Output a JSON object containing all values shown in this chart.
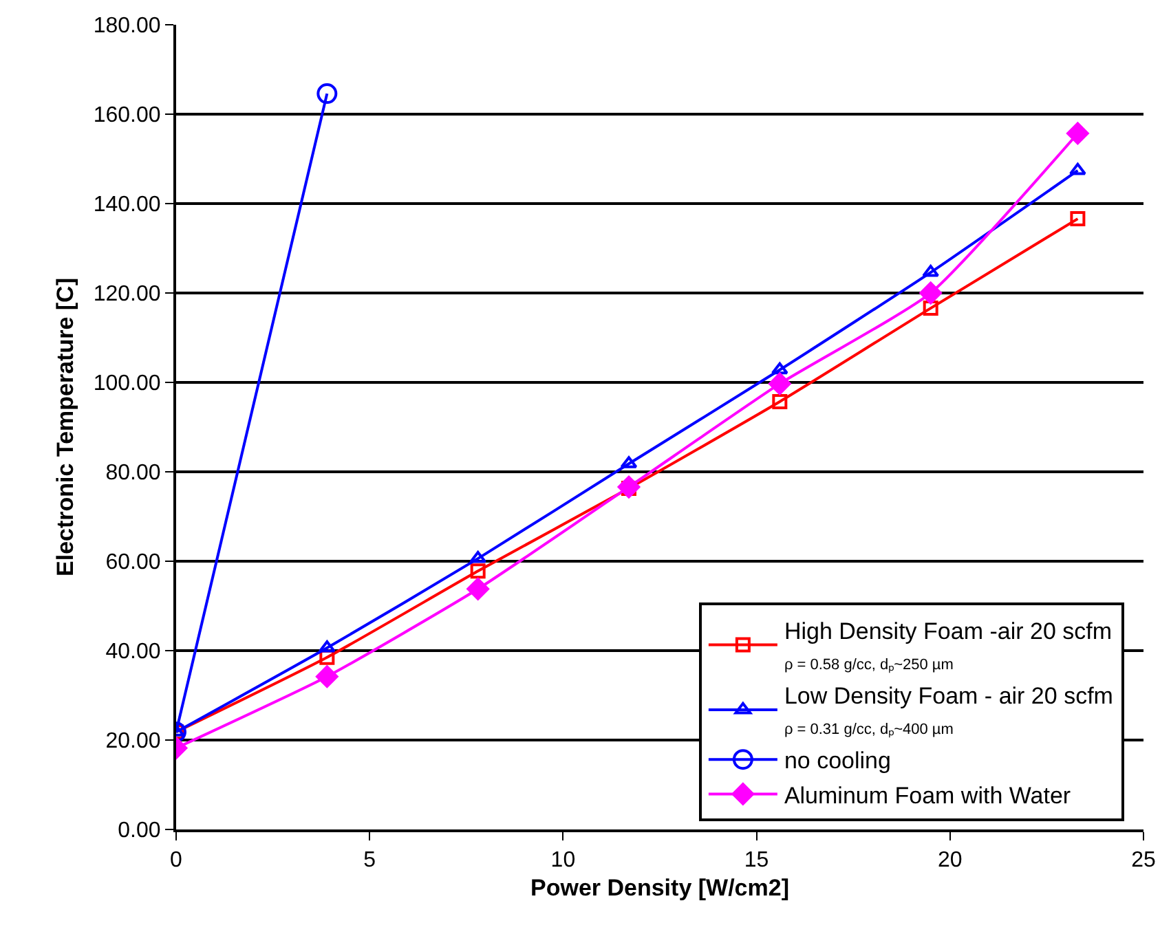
{
  "chart_data": {
    "type": "line",
    "xlabel": "Power Density [W/cm2]",
    "ylabel": "Electronic Temperature [C]",
    "xlim": [
      0,
      25
    ],
    "xticks": [
      0,
      5,
      10,
      15,
      20,
      25
    ],
    "ylim": [
      0,
      180
    ],
    "yticks": [
      {
        "value": 0,
        "label": "0.00"
      },
      {
        "value": 20,
        "label": "20.00"
      },
      {
        "value": 40,
        "label": "40.00"
      },
      {
        "value": 60,
        "label": "60.00"
      },
      {
        "value": 80,
        "label": "80.00"
      },
      {
        "value": 100,
        "label": "100.00"
      },
      {
        "value": 120,
        "label": "120.00"
      },
      {
        "value": 140,
        "label": "140.00"
      },
      {
        "value": 160,
        "label": "160.00"
      },
      {
        "value": 180,
        "label": "180.00"
      }
    ],
    "grid": "y",
    "legend": "bottom right",
    "line_style": "solid",
    "series": [
      {
        "name": "High Density Foam -air 20 scfm\nρ = 0.58 g/cc, dₚ~250 µm",
        "color": "#ff0000",
        "marker": "square",
        "x": [
          0,
          3.9,
          7.8,
          11.7,
          15.6,
          19.5,
          23.3
        ],
        "values": [
          21.8,
          38.5,
          57.8,
          76.3,
          95.7,
          116.6,
          136.6
        ]
      },
      {
        "name": "Low Density Foam - air 20 scfm\nρ = 0.31 g/cc, dₚ~400 µm",
        "color": "#0000ff",
        "marker": "triangle",
        "x": [
          0,
          3.9,
          7.8,
          11.7,
          15.6,
          19.5,
          23.3
        ],
        "values": [
          21.8,
          40.6,
          60.6,
          81.8,
          102.8,
          124.6,
          147.4
        ]
      },
      {
        "name": "no cooling",
        "color": "#0000ff",
        "marker": "circle",
        "x": [
          0,
          3.9
        ],
        "values": [
          21.8,
          164.6
        ]
      },
      {
        "name": "Aluminum Foam with Water",
        "color": "#ff00ff",
        "marker": "diamond",
        "x": [
          0,
          3.9,
          7.8,
          11.7,
          15.6,
          19.5,
          23.3
        ],
        "values": [
          18.2,
          34.2,
          53.8,
          76.6,
          99.7,
          120,
          155.7
        ]
      }
    ]
  }
}
